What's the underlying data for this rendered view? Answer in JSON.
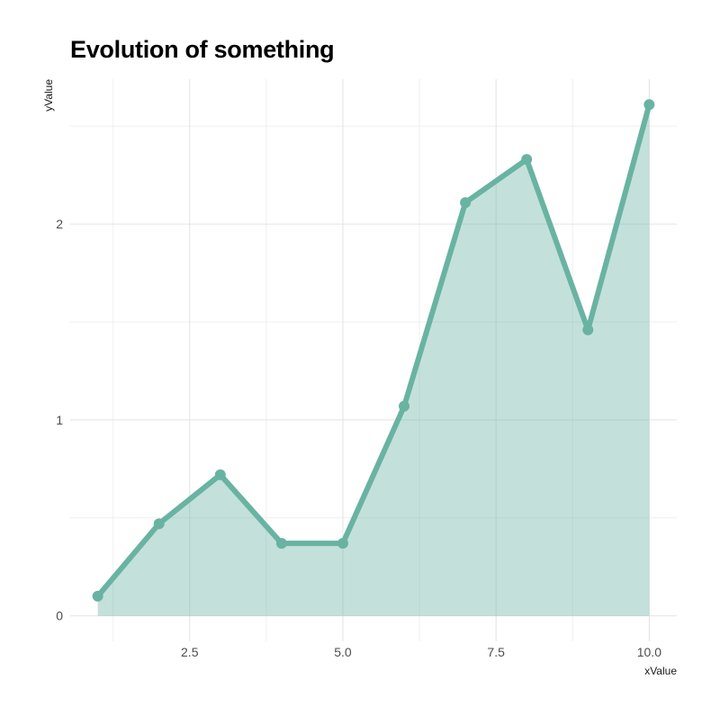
{
  "chart_data": {
    "type": "area",
    "title": "Evolution of something",
    "xlabel": "xValue",
    "ylabel": "yValue",
    "x": [
      1,
      2,
      3,
      4,
      5,
      6,
      7,
      8,
      9,
      10
    ],
    "series": [
      {
        "name": "yValue",
        "values": [
          0.1,
          0.47,
          0.72,
          0.37,
          0.37,
          1.07,
          2.11,
          2.33,
          1.46,
          2.61
        ]
      }
    ],
    "xlim": [
      0.55,
      10.45
    ],
    "ylim": [
      -0.13,
      2.74
    ],
    "x_ticks": [
      2.5,
      5.0,
      7.5,
      10.0
    ],
    "x_tick_labels": [
      "2.5",
      "5.0",
      "7.5",
      "10.0"
    ],
    "x_minor_ticks": [
      1.25,
      3.75,
      6.25,
      8.75
    ],
    "y_ticks": [
      0,
      1,
      2
    ],
    "y_tick_labels": [
      "0",
      "1",
      "2"
    ],
    "y_minor_ticks": [
      0.5,
      1.5,
      2.5
    ],
    "grid": true,
    "legend": null,
    "colors": {
      "line": "#69b3a2",
      "fill": "#69b3a2",
      "fill_opacity": 0.4,
      "grid_major": "#e3e3e3",
      "grid_minor": "#efefef",
      "tick_text": "#4d4d4d"
    }
  }
}
